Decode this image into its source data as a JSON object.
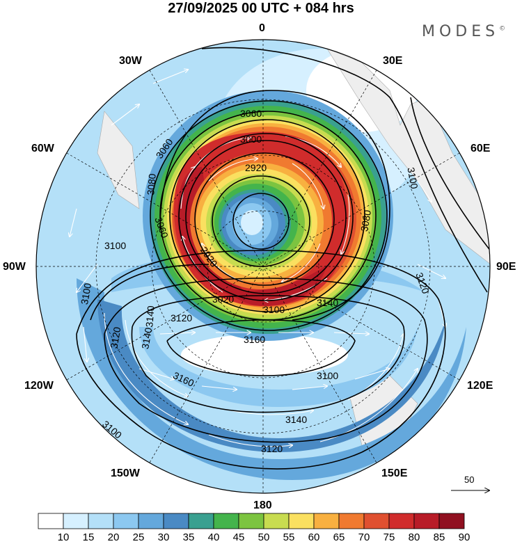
{
  "header": {
    "title": "27/09/2025  00 UTC  + 084 hrs",
    "logo": "MODES",
    "logo_mark": "©"
  },
  "map": {
    "projection": "south-polar-stereographic",
    "longitude_labels": {
      "top": "0",
      "top_right": "30E",
      "right_upper": "60E",
      "right": "90E",
      "right_lower": "120E",
      "bottom_right": "150E",
      "bottom": "180",
      "bottom_left": "150W",
      "left_lower": "120W",
      "left": "90W",
      "left_upper": "60W",
      "top_left": "30W"
    },
    "contour_labels": [
      "3060",
      "3060",
      "3000",
      "2920",
      "3080",
      "2920",
      "3080",
      "3100",
      "3100",
      "3100",
      "3060",
      "3020",
      "3100",
      "3140",
      "3120",
      "3120",
      "3140",
      "3160",
      "3100",
      "3120",
      "3140",
      "3160",
      "3100",
      "3140",
      "3120"
    ],
    "wind_vector_reference": "50"
  },
  "colorbar": {
    "ticks": [
      "10",
      "15",
      "20",
      "25",
      "30",
      "35",
      "40",
      "45",
      "50",
      "55",
      "60",
      "65",
      "70",
      "75",
      "80",
      "85",
      "90"
    ],
    "colors": [
      "#ffffff",
      "#d6f0ff",
      "#b4e0f8",
      "#8cc8f0",
      "#64a8dc",
      "#4a8ac4",
      "#3aa090",
      "#44b44c",
      "#7cc440",
      "#c8dc50",
      "#fae060",
      "#f8b040",
      "#f07a30",
      "#e05030",
      "#d02c2c",
      "#b81c28",
      "#901020"
    ]
  }
}
